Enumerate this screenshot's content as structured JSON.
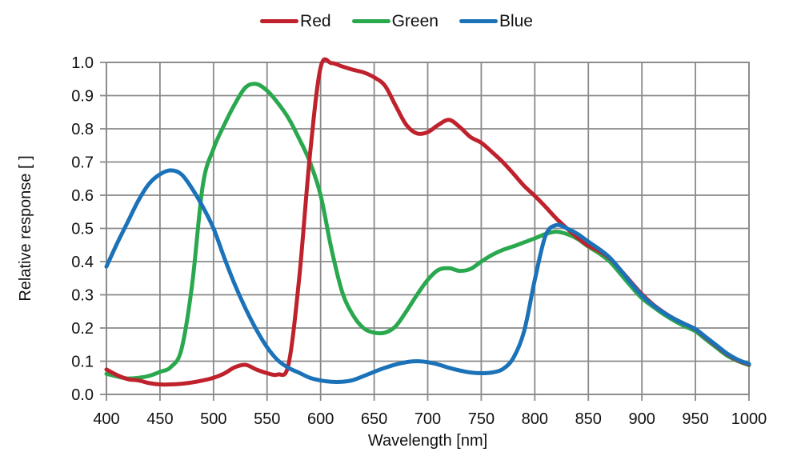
{
  "chart_data": {
    "type": "line",
    "title": "",
    "xlabel": "Wavelength [nm]",
    "ylabel": "Relative response [ ]",
    "xlim": [
      400,
      1000
    ],
    "ylim": [
      0.0,
      1.0
    ],
    "xticks": [
      400,
      450,
      500,
      550,
      600,
      650,
      700,
      750,
      800,
      850,
      900,
      950,
      1000
    ],
    "ytick_values": [
      0.0,
      0.1,
      0.2,
      0.3,
      0.4,
      0.5,
      0.6,
      0.7,
      0.8,
      0.9,
      1.0
    ],
    "ytick_labels": [
      "0.0",
      "0.1",
      "0.2",
      "0.3",
      "0.4",
      "0.5",
      "0.6",
      "0.7",
      "0.8",
      "0.9",
      "1.0"
    ],
    "grid": true,
    "grid_color": "#8a8a8a",
    "axis_color": "#8a8a8a",
    "text_color": "#111111",
    "legend_position": "top-center",
    "draw_order": [
      "Green",
      "Red",
      "Blue"
    ],
    "x": [
      400,
      410,
      420,
      430,
      440,
      450,
      460,
      470,
      480,
      490,
      500,
      510,
      520,
      530,
      540,
      550,
      560,
      570,
      580,
      590,
      600,
      610,
      620,
      630,
      640,
      650,
      660,
      670,
      680,
      690,
      700,
      710,
      720,
      730,
      740,
      750,
      760,
      770,
      780,
      790,
      800,
      810,
      820,
      830,
      840,
      850,
      860,
      870,
      880,
      890,
      900,
      910,
      920,
      930,
      940,
      950,
      960,
      970,
      980,
      990,
      1000
    ],
    "series": [
      {
        "name": "Red",
        "color": "#bf222c",
        "values": [
          0.075,
          0.058,
          0.046,
          0.042,
          0.034,
          0.03,
          0.03,
          0.032,
          0.036,
          0.042,
          0.05,
          0.063,
          0.082,
          0.089,
          0.075,
          0.064,
          0.06,
          0.09,
          0.35,
          0.72,
          0.985,
          0.998,
          0.988,
          0.978,
          0.97,
          0.955,
          0.93,
          0.87,
          0.812,
          0.786,
          0.79,
          0.812,
          0.827,
          0.805,
          0.775,
          0.758,
          0.73,
          0.7,
          0.665,
          0.628,
          0.598,
          0.565,
          0.53,
          0.5,
          0.472,
          0.448,
          0.432,
          0.41,
          0.375,
          0.338,
          0.302,
          0.272,
          0.248,
          0.228,
          0.212,
          0.196,
          0.17,
          0.145,
          0.12,
          0.102,
          0.09
        ]
      },
      {
        "name": "Green",
        "color": "#2aa84e",
        "values": [
          0.062,
          0.054,
          0.048,
          0.05,
          0.056,
          0.068,
          0.082,
          0.135,
          0.33,
          0.63,
          0.74,
          0.812,
          0.875,
          0.925,
          0.935,
          0.915,
          0.878,
          0.832,
          0.77,
          0.7,
          0.6,
          0.44,
          0.31,
          0.24,
          0.2,
          0.186,
          0.186,
          0.205,
          0.25,
          0.3,
          0.345,
          0.375,
          0.38,
          0.372,
          0.378,
          0.4,
          0.42,
          0.435,
          0.446,
          0.458,
          0.47,
          0.483,
          0.49,
          0.483,
          0.468,
          0.445,
          0.425,
          0.4,
          0.363,
          0.325,
          0.29,
          0.265,
          0.242,
          0.222,
          0.205,
          0.19,
          0.165,
          0.14,
          0.116,
          0.1,
          0.088
        ]
      },
      {
        "name": "Blue",
        "color": "#1c72b8",
        "values": [
          0.385,
          0.455,
          0.52,
          0.585,
          0.635,
          0.663,
          0.675,
          0.663,
          0.62,
          0.565,
          0.5,
          0.412,
          0.33,
          0.258,
          0.195,
          0.142,
          0.103,
          0.08,
          0.065,
          0.05,
          0.042,
          0.038,
          0.038,
          0.043,
          0.055,
          0.068,
          0.08,
          0.09,
          0.097,
          0.1,
          0.097,
          0.09,
          0.08,
          0.072,
          0.066,
          0.064,
          0.066,
          0.076,
          0.11,
          0.19,
          0.345,
          0.478,
          0.51,
          0.5,
          0.483,
          0.46,
          0.438,
          0.412,
          0.375,
          0.335,
          0.298,
          0.27,
          0.247,
          0.228,
          0.212,
          0.197,
          0.172,
          0.147,
          0.122,
          0.104,
          0.092
        ]
      }
    ]
  }
}
